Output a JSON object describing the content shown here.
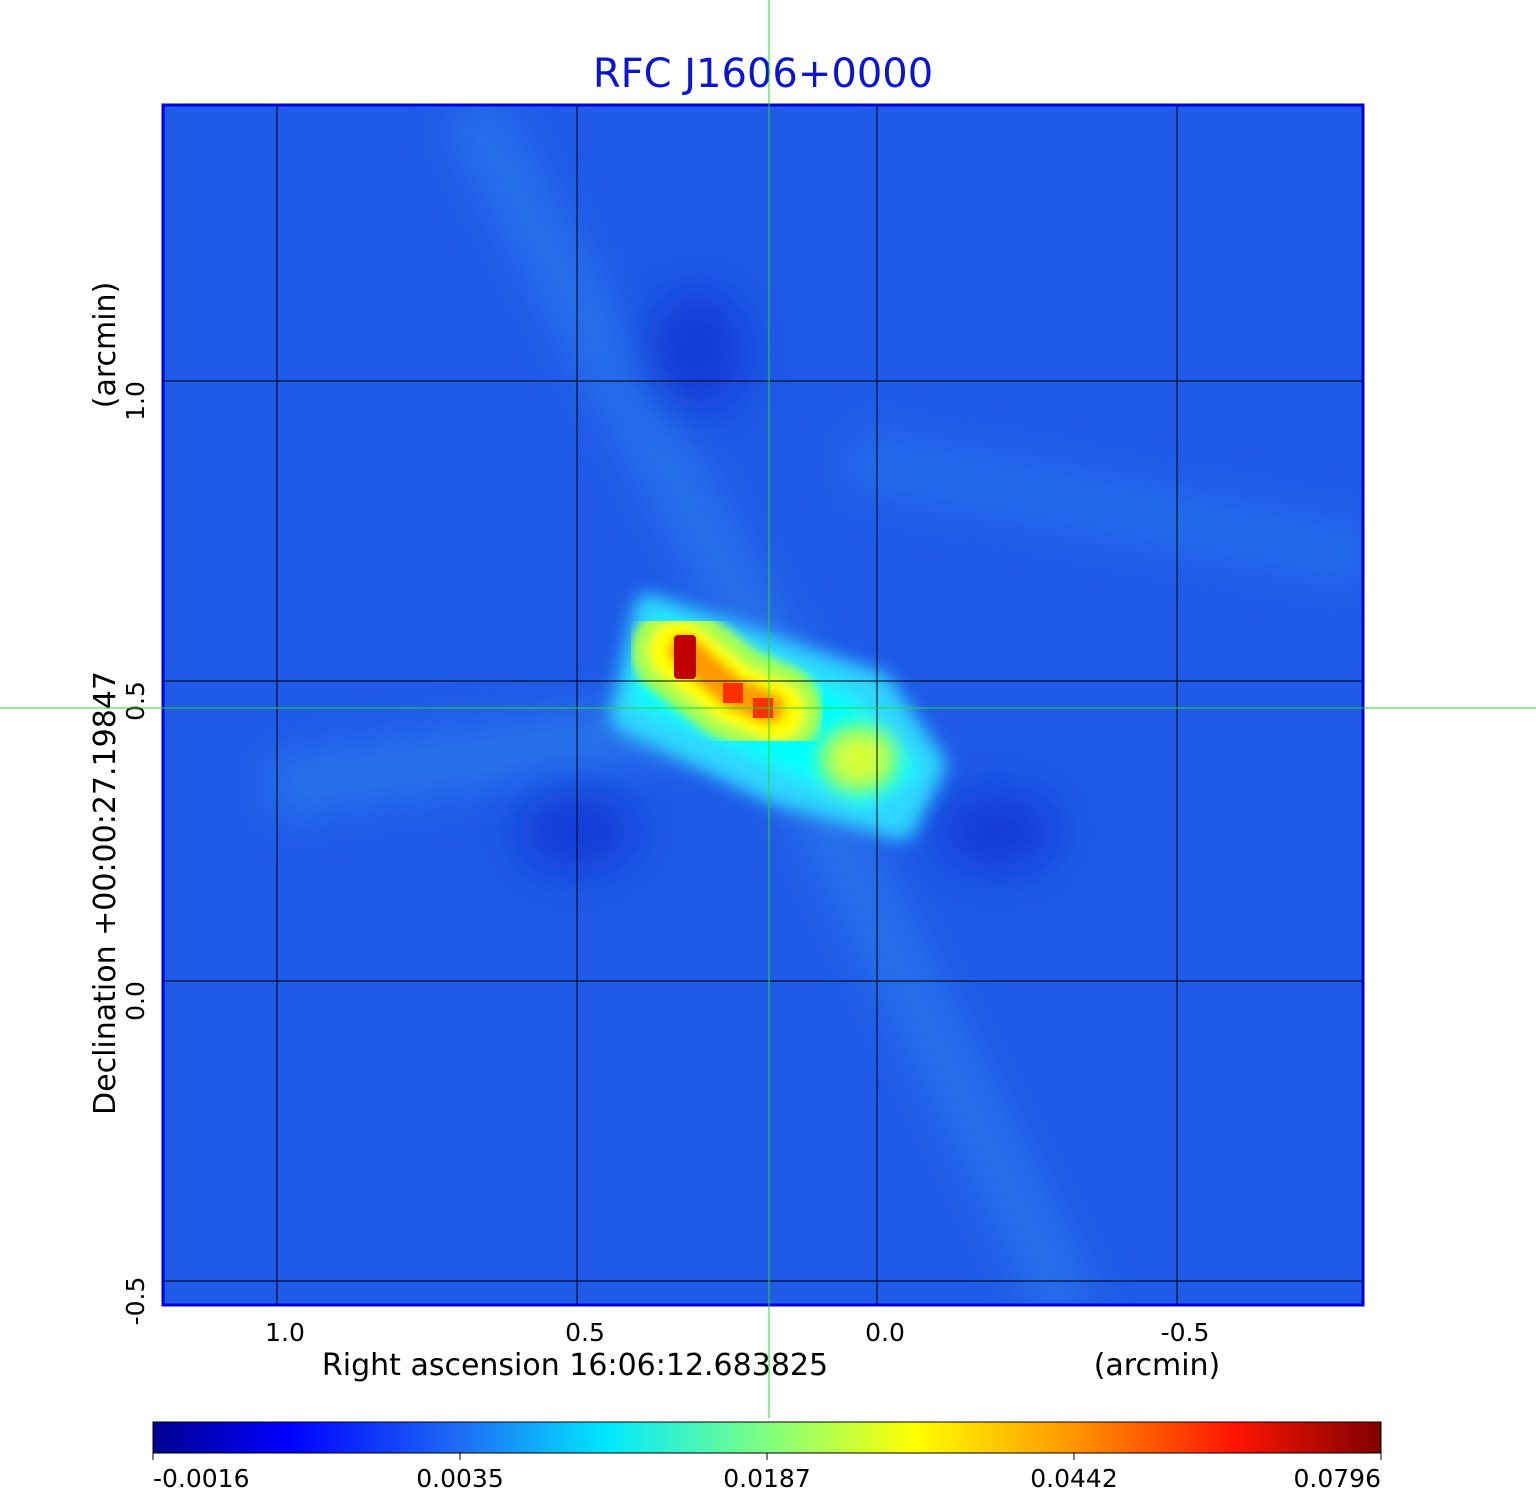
{
  "chart_data": {
    "type": "heatmap",
    "title": "RFC J1606+0000",
    "xlabel": "Right ascension  16:06:12.683825",
    "xunit": "(arcmin)",
    "ylabel": "Declination  +00:00:27.19847",
    "yunit": "(arcmin)",
    "x_ticks": [
      "1.0",
      "0.5",
      "0.0",
      "-0.5"
    ],
    "y_ticks": [
      "1.0",
      "0.5",
      "0.0",
      "-0.5"
    ],
    "xlim": [
      1.19,
      -0.81
    ],
    "ylim": [
      -0.54,
      1.46
    ],
    "grid": true,
    "crosshair": {
      "x": 0.18,
      "y": 0.455
    },
    "colormap": "jet",
    "colorbar_ticks": [
      "-0.0016",
      "0.0035",
      "0.0187",
      "0.0442",
      "0.0796"
    ],
    "features": [
      {
        "x": 0.32,
        "y": 0.54,
        "peak": 0.0796
      },
      {
        "x": 0.24,
        "y": 0.48,
        "peak": 0.06
      },
      {
        "x": 0.19,
        "y": 0.455,
        "peak": 0.055
      },
      {
        "x": 0.03,
        "y": 0.37,
        "peak": 0.026
      }
    ],
    "colors": {
      "title": "#0a14d2",
      "frame": "#0000e0",
      "grid": "#000000",
      "crosshair": "#22dd22"
    }
  }
}
